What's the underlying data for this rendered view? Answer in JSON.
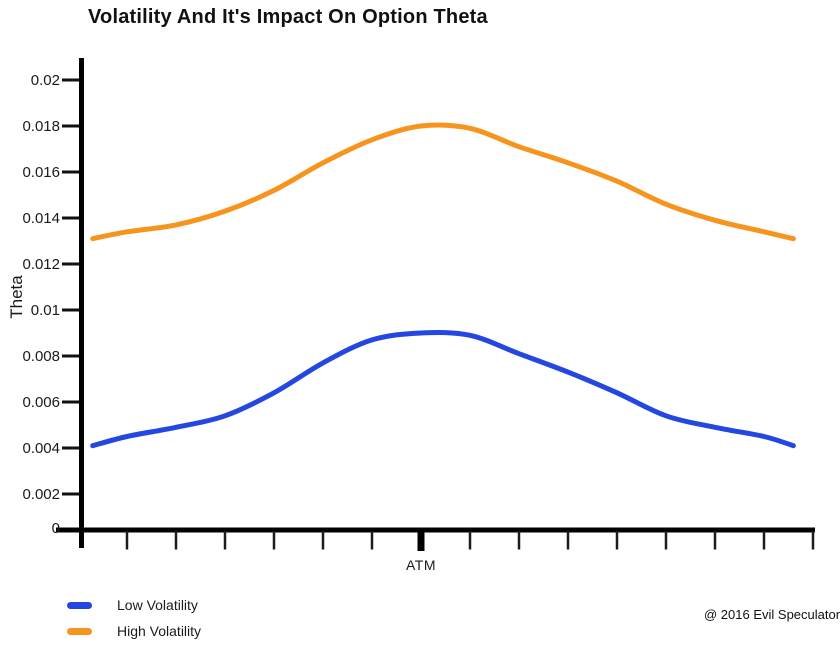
{
  "title": "Volatility And It's Impact On Option Theta",
  "y_axis_title": "Theta",
  "attribution": "@ 2016 Evil Speculator",
  "legend": {
    "items": [
      {
        "label": "Low Volatility",
        "color": "#2347e0"
      },
      {
        "label": "High Volatility",
        "color": "#f7941e"
      }
    ]
  },
  "chart_data": {
    "type": "line",
    "title": "Volatility And It's Impact On Option Theta",
    "xlabel": "",
    "ylabel": "Theta",
    "grid": false,
    "legend_position": "bottom-left",
    "x_axis": {
      "atm_label": "ATM",
      "ticks_rel_atm": [
        -6,
        -5,
        -4,
        -3,
        -2,
        -1,
        0,
        1,
        2,
        3,
        4,
        5,
        6,
        7,
        8
      ]
    },
    "y_axis": {
      "range": [
        0,
        0.02
      ],
      "tick_values": [
        0,
        0.002,
        0.004,
        0.006,
        0.008,
        0.01,
        0.012,
        0.014,
        0.016,
        0.018,
        0.02
      ],
      "tick_labels": [
        "0",
        "0.002",
        "0.004",
        "0.006",
        "0.008",
        "0.01",
        "0.012",
        "0.014",
        "0.016",
        "0.018",
        "0.02"
      ]
    },
    "series": [
      {
        "name": "Low Volatility",
        "color": "#2347e0",
        "points": [
          [
            -6.7,
            0.0041
          ],
          [
            -6,
            0.0045
          ],
          [
            -5,
            0.0049
          ],
          [
            -4,
            0.0054
          ],
          [
            -3,
            0.0064
          ],
          [
            -2,
            0.0077
          ],
          [
            -1,
            0.0087
          ],
          [
            0,
            0.009
          ],
          [
            1,
            0.0089
          ],
          [
            2,
            0.0081
          ],
          [
            3,
            0.0073
          ],
          [
            4,
            0.0064
          ],
          [
            5,
            0.0054
          ],
          [
            6,
            0.0049
          ],
          [
            7,
            0.0045
          ],
          [
            7.6,
            0.0041
          ]
        ]
      },
      {
        "name": "High Volatility",
        "color": "#f7941e",
        "points": [
          [
            -6.7,
            0.0131
          ],
          [
            -6,
            0.0134
          ],
          [
            -5,
            0.0137
          ],
          [
            -4,
            0.0143
          ],
          [
            -3,
            0.0152
          ],
          [
            -2,
            0.0164
          ],
          [
            -1,
            0.0174
          ],
          [
            0,
            0.018
          ],
          [
            1,
            0.0179
          ],
          [
            2,
            0.0171
          ],
          [
            3,
            0.0164
          ],
          [
            4,
            0.0156
          ],
          [
            5,
            0.0146
          ],
          [
            6,
            0.0139
          ],
          [
            7,
            0.0134
          ],
          [
            7.6,
            0.0131
          ]
        ]
      }
    ]
  }
}
